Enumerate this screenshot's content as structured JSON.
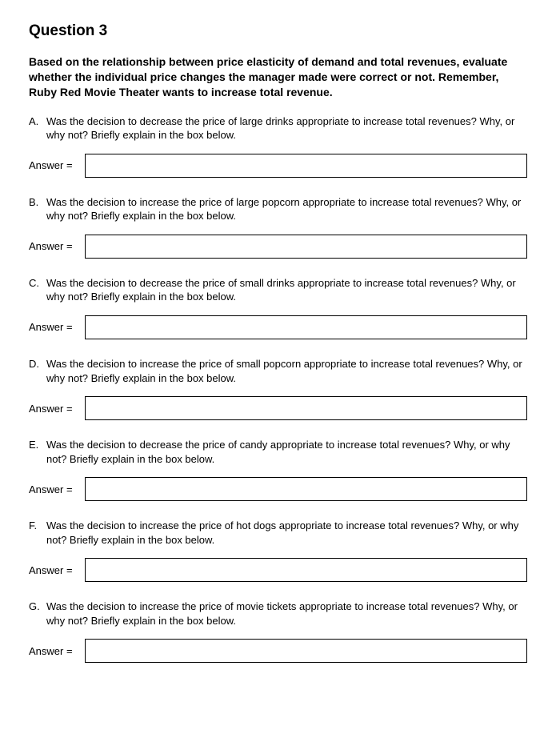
{
  "title": "Question 3",
  "intro": "Based on the relationship between price elasticity of demand and total revenues, evaluate whether the individual price changes the manager made were correct or not.  Remember, Ruby Red Movie Theater wants to increase total revenue.",
  "answer_label": "Answer =",
  "items": [
    {
      "letter": "A.",
      "prompt": "Was the decision to decrease the price of large drinks appropriate to increase total revenues?  Why, or why not? Briefly explain in the box below."
    },
    {
      "letter": "B.",
      "prompt": "Was the decision to increase the price of large popcorn appropriate to increase total revenues?  Why, or why not? Briefly explain in the box below."
    },
    {
      "letter": "C.",
      "prompt": "Was the decision to decrease the price of small drinks appropriate to increase total revenues?  Why, or why not? Briefly explain in the box below."
    },
    {
      "letter": "D.",
      "prompt": "Was the decision to increase the price of small popcorn appropriate to increase total revenues?  Why, or why not? Briefly explain in the box below."
    },
    {
      "letter": "E.",
      "prompt": "Was the decision to decrease the price of candy appropriate to increase total revenues?  Why, or why not? Briefly explain in the box below."
    },
    {
      "letter": "F.",
      "prompt": "Was the decision to increase the price of hot dogs appropriate to increase total revenues?  Why, or why not? Briefly explain in the box below."
    },
    {
      "letter": "G.",
      "prompt": "Was the decision to increase the price of movie tickets appropriate to increase total revenues?  Why, or why not? Briefly explain in the box below."
    }
  ]
}
